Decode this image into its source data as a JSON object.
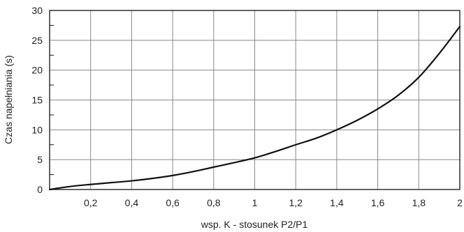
{
  "chart_data": {
    "type": "line",
    "title": "",
    "xlabel": "wsp. K - stosunek P2/P1",
    "ylabel": "Czas napełniania (s)",
    "xlim": [
      0,
      2
    ],
    "ylim": [
      0,
      30
    ],
    "x_ticks": [
      0.2,
      0.4,
      0.6,
      0.8,
      1,
      1.2,
      1.4,
      1.6,
      1.8,
      2
    ],
    "x_tick_labels": [
      "0,2",
      "0,4",
      "0,6",
      "0,8",
      "1",
      "1,2",
      "1,4",
      "1,6",
      "1,8",
      "2"
    ],
    "y_ticks": [
      0,
      5,
      10,
      15,
      20,
      25,
      30
    ],
    "y_tick_labels": [
      "0",
      "5",
      "10",
      "15",
      "20",
      "25",
      "30"
    ],
    "y_minor_ticks": [
      2.5,
      7.5,
      12.5,
      17.5,
      22.5,
      27.5
    ],
    "grid": true,
    "line_color": "#111111",
    "grid_color": "#888888",
    "series": [
      {
        "x": [
          0,
          0.1,
          0.2,
          0.3,
          0.4,
          0.5,
          0.6,
          0.7,
          0.8,
          0.9,
          1.0,
          1.1,
          1.2,
          1.3,
          1.4,
          1.5,
          1.6,
          1.7,
          1.8,
          1.9,
          2.0
        ],
        "y": [
          0,
          0.5,
          0.85,
          1.15,
          1.45,
          1.85,
          2.35,
          3.0,
          3.75,
          4.5,
          5.3,
          6.35,
          7.5,
          8.6,
          10.0,
          11.6,
          13.5,
          15.8,
          18.8,
          22.8,
          27.3
        ]
      }
    ]
  }
}
